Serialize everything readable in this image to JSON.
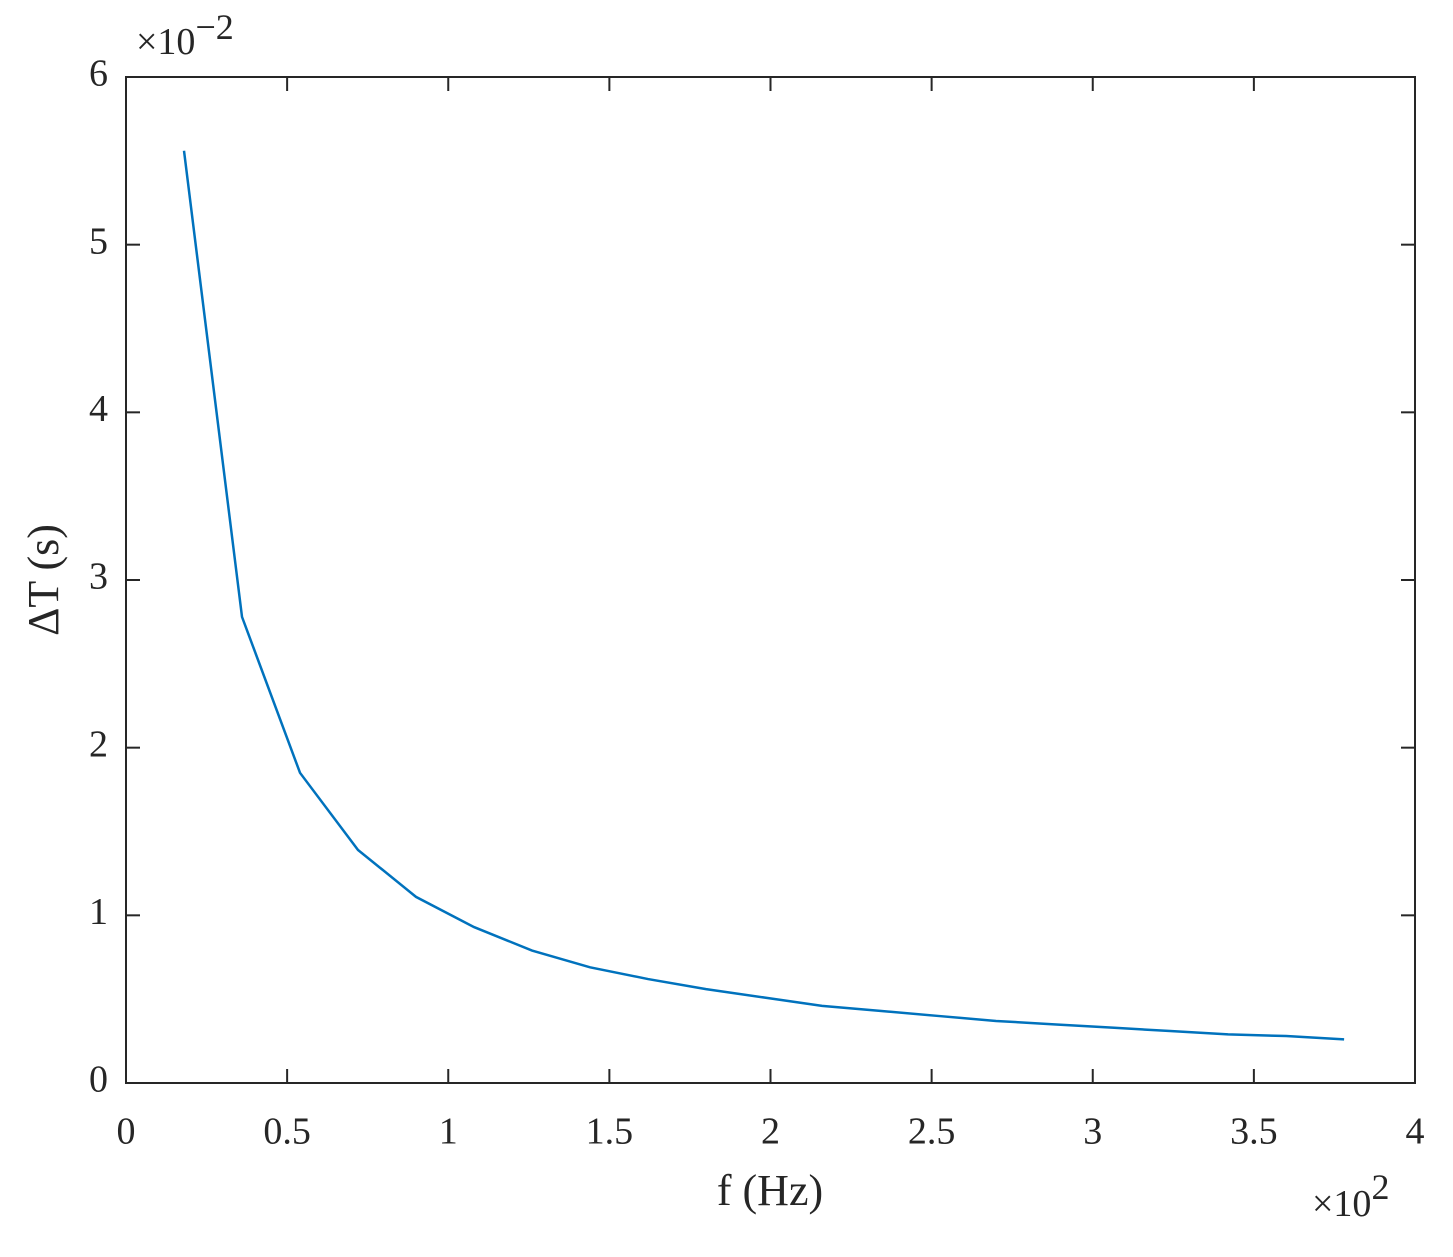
{
  "chart_data": {
    "type": "line",
    "x_label": "f (Hz)",
    "y_label": "ΔT (s)",
    "x_multiplier": {
      "base": "×10",
      "exponent": "2"
    },
    "y_multiplier": {
      "base": "×10",
      "exponent": "−2"
    },
    "x": [
      0.18,
      0.36,
      0.54,
      0.72,
      0.9,
      1.08,
      1.26,
      1.44,
      1.62,
      1.8,
      1.98,
      2.16,
      2.34,
      2.52,
      2.7,
      2.88,
      3.06,
      3.24,
      3.42,
      3.6,
      3.78
    ],
    "series": [
      {
        "color": "#0072bd",
        "values": [
          5.56,
          2.78,
          1.85,
          1.39,
          1.11,
          0.93,
          0.79,
          0.69,
          0.62,
          0.56,
          0.51,
          0.46,
          0.43,
          0.4,
          0.37,
          0.35,
          0.33,
          0.31,
          0.29,
          0.28,
          0.26
        ]
      }
    ],
    "xlim": [
      0,
      4
    ],
    "xticks": [
      0,
      0.5,
      1,
      1.5,
      2,
      2.5,
      3,
      3.5,
      4
    ],
    "ylim": [
      0,
      6
    ],
    "yticks": [
      0,
      1,
      2,
      3,
      4,
      5,
      6
    ]
  }
}
